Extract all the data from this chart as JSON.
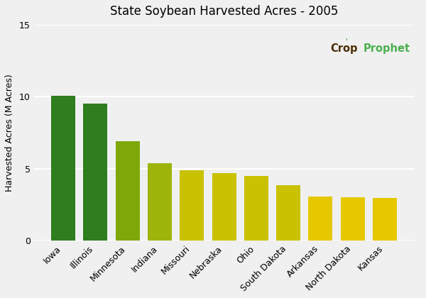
{
  "title": "State Soybean Harvested Acres - 2005",
  "ylabel": "Harvested Acres (M Acres)",
  "categories": [
    "Iowa",
    "Illinois",
    "Minnesota",
    "Indiana",
    "Missouri",
    "Nebraska",
    "Ohio",
    "South Dakota",
    "Arkansas",
    "North Dakota",
    "Kansas"
  ],
  "values": [
    10.05,
    9.5,
    6.9,
    5.4,
    4.9,
    4.7,
    4.5,
    3.85,
    3.05,
    3.0,
    2.95
  ],
  "bar_colors": [
    "#2e7d1e",
    "#2e7d1e",
    "#7ea80a",
    "#9db50a",
    "#c8c200",
    "#c8c200",
    "#c8c200",
    "#c8c200",
    "#e6c800",
    "#e6c800",
    "#e6c800"
  ],
  "ylim": [
    0,
    15
  ],
  "yticks": [
    0,
    5,
    10,
    15
  ],
  "background_color": "#f0f0f0",
  "grid_color": "#ffffff",
  "watermark_crop_color": "#4a2d00",
  "watermark_prophet_color": "#4caf50"
}
